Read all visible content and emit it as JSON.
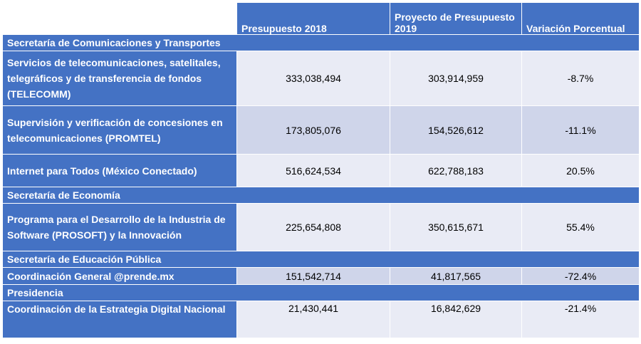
{
  "header": {
    "col1": "Presupuesto 2018",
    "col2": "Proyecto de Presupuesto 2019",
    "col3": "Variación Porcentual"
  },
  "rows": [
    {
      "type": "section",
      "label": "Secretaría de Comunicaciones y Transportes"
    },
    {
      "type": "data",
      "label": "Servicios de telecomunicaciones, satelitales, telegráficos y de transferencia de fondos (TELECOMM)",
      "b2018": "333,038,494",
      "b2019": "303,914,959",
      "var": "-8.7%"
    },
    {
      "type": "data",
      "label": "Supervisión y verificación de concesiones en telecomunicaciones (PROMTEL)",
      "b2018": "173,805,076",
      "b2019": "154,526,612",
      "var": "-11.1%"
    },
    {
      "type": "data",
      "label": "Internet para Todos (México Conectado)",
      "b2018": "516,624,534",
      "b2019": "622,788,183",
      "var": "20.5%"
    },
    {
      "type": "section",
      "label": "Secretaría de Economía"
    },
    {
      "type": "data",
      "label": "Programa para el Desarrollo de la Industria de Software (PROSOFT) y la Innovación",
      "b2018": "225,654,808",
      "b2019": "350,615,671",
      "var": "55.4%"
    },
    {
      "type": "section",
      "label": "Secretaría de Educación Pública"
    },
    {
      "type": "data",
      "label": "Coordinación General @prende.mx",
      "b2018": "151,542,714",
      "b2019": "41,817,565",
      "var": "-72.4%"
    },
    {
      "type": "section",
      "label": "Presidencia"
    },
    {
      "type": "data",
      "label": "Coordinación de la Estrategia Digital Nacional",
      "b2018": "21,430,441",
      "b2019": "16,842,629",
      "var": "-21.4%"
    }
  ],
  "colors": {
    "header": "#4472c4",
    "row_light": "#e9ebf5",
    "row_dark": "#cfd5ea"
  }
}
